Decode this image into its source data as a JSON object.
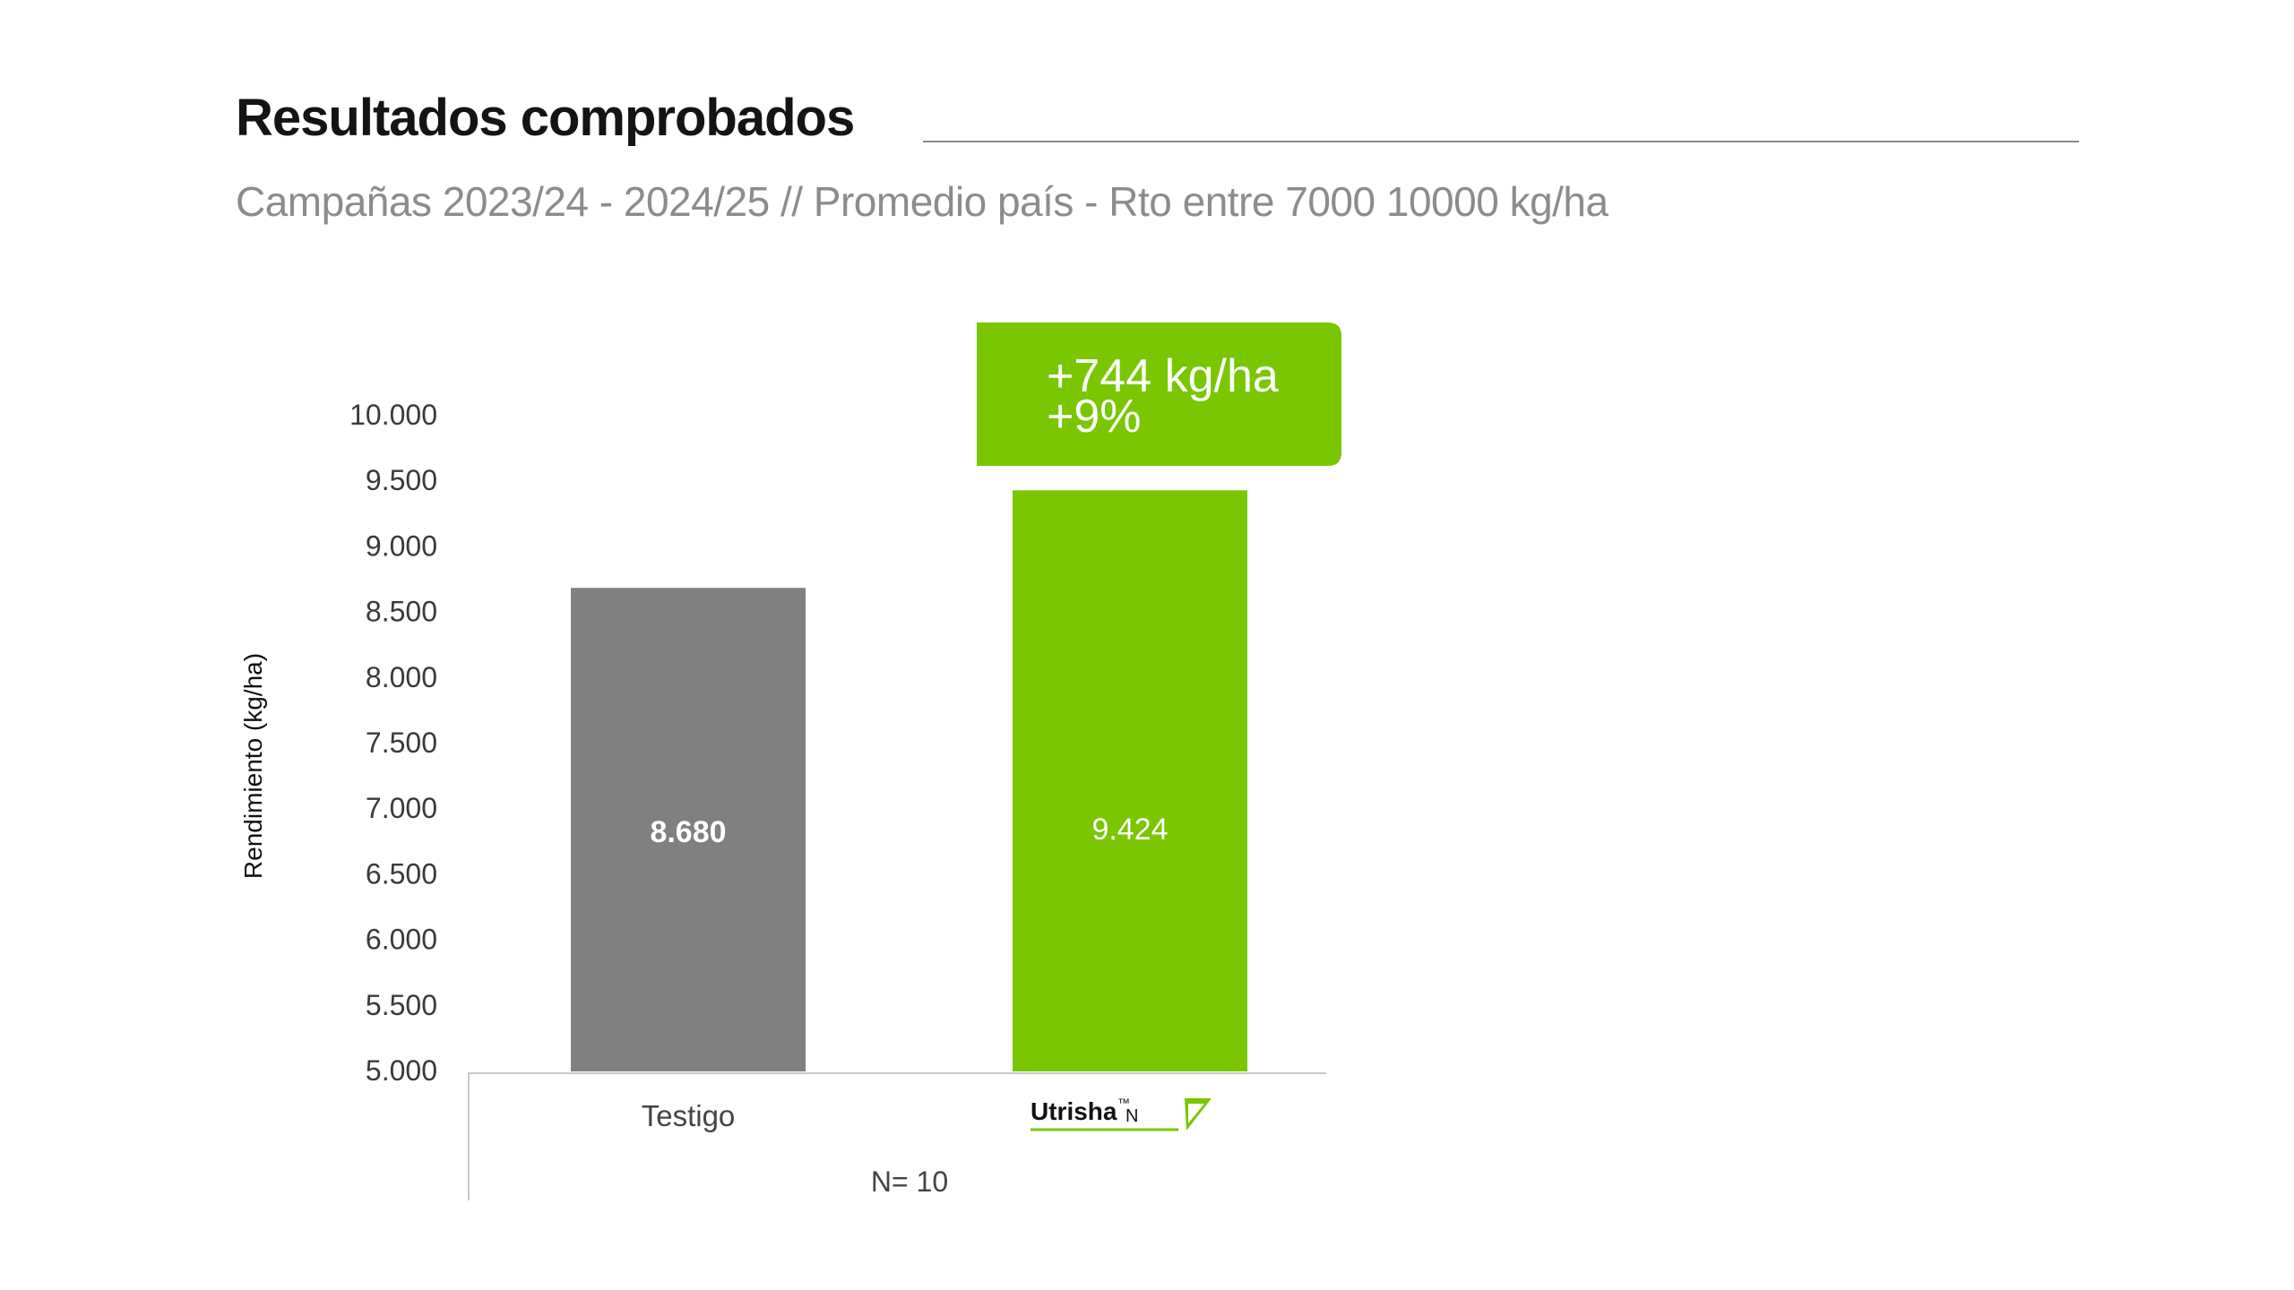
{
  "header": {
    "title": "Resultados comprobados",
    "subtitle": "Campañas 2023/24 - 2024/25 // Promedio país - Rto entre 7000 10000 kg/ha"
  },
  "colors": {
    "control_bar": "#808080",
    "treatment_bar": "#7ac600",
    "callout": "#7ac600"
  },
  "callout": {
    "line1": "+744 kg/ha",
    "line2": "+9%"
  },
  "footer": {
    "n_label": "N= 10"
  },
  "logo": {
    "text": "Utrisha",
    "tm": "™",
    "suffix": "N"
  },
  "chart_data": {
    "type": "bar",
    "categories": [
      "Testigo",
      "Utrisha N"
    ],
    "values": [
      8680,
      9424
    ],
    "data_labels": [
      "8.680",
      "9.424"
    ],
    "ylabel": "Rendimiento (kg/ha)",
    "ylim": [
      5000,
      10000
    ],
    "yticks": [
      5000,
      5500,
      6000,
      6500,
      7000,
      7500,
      8000,
      8500,
      9000,
      9500,
      10000
    ],
    "ytick_labels": [
      "5.000",
      "5.500",
      "6.000",
      "6.500",
      "7.000",
      "7.500",
      "8.000",
      "8.500",
      "9.000",
      "9.500",
      "10.000"
    ],
    "grid": false,
    "legend": "none"
  }
}
